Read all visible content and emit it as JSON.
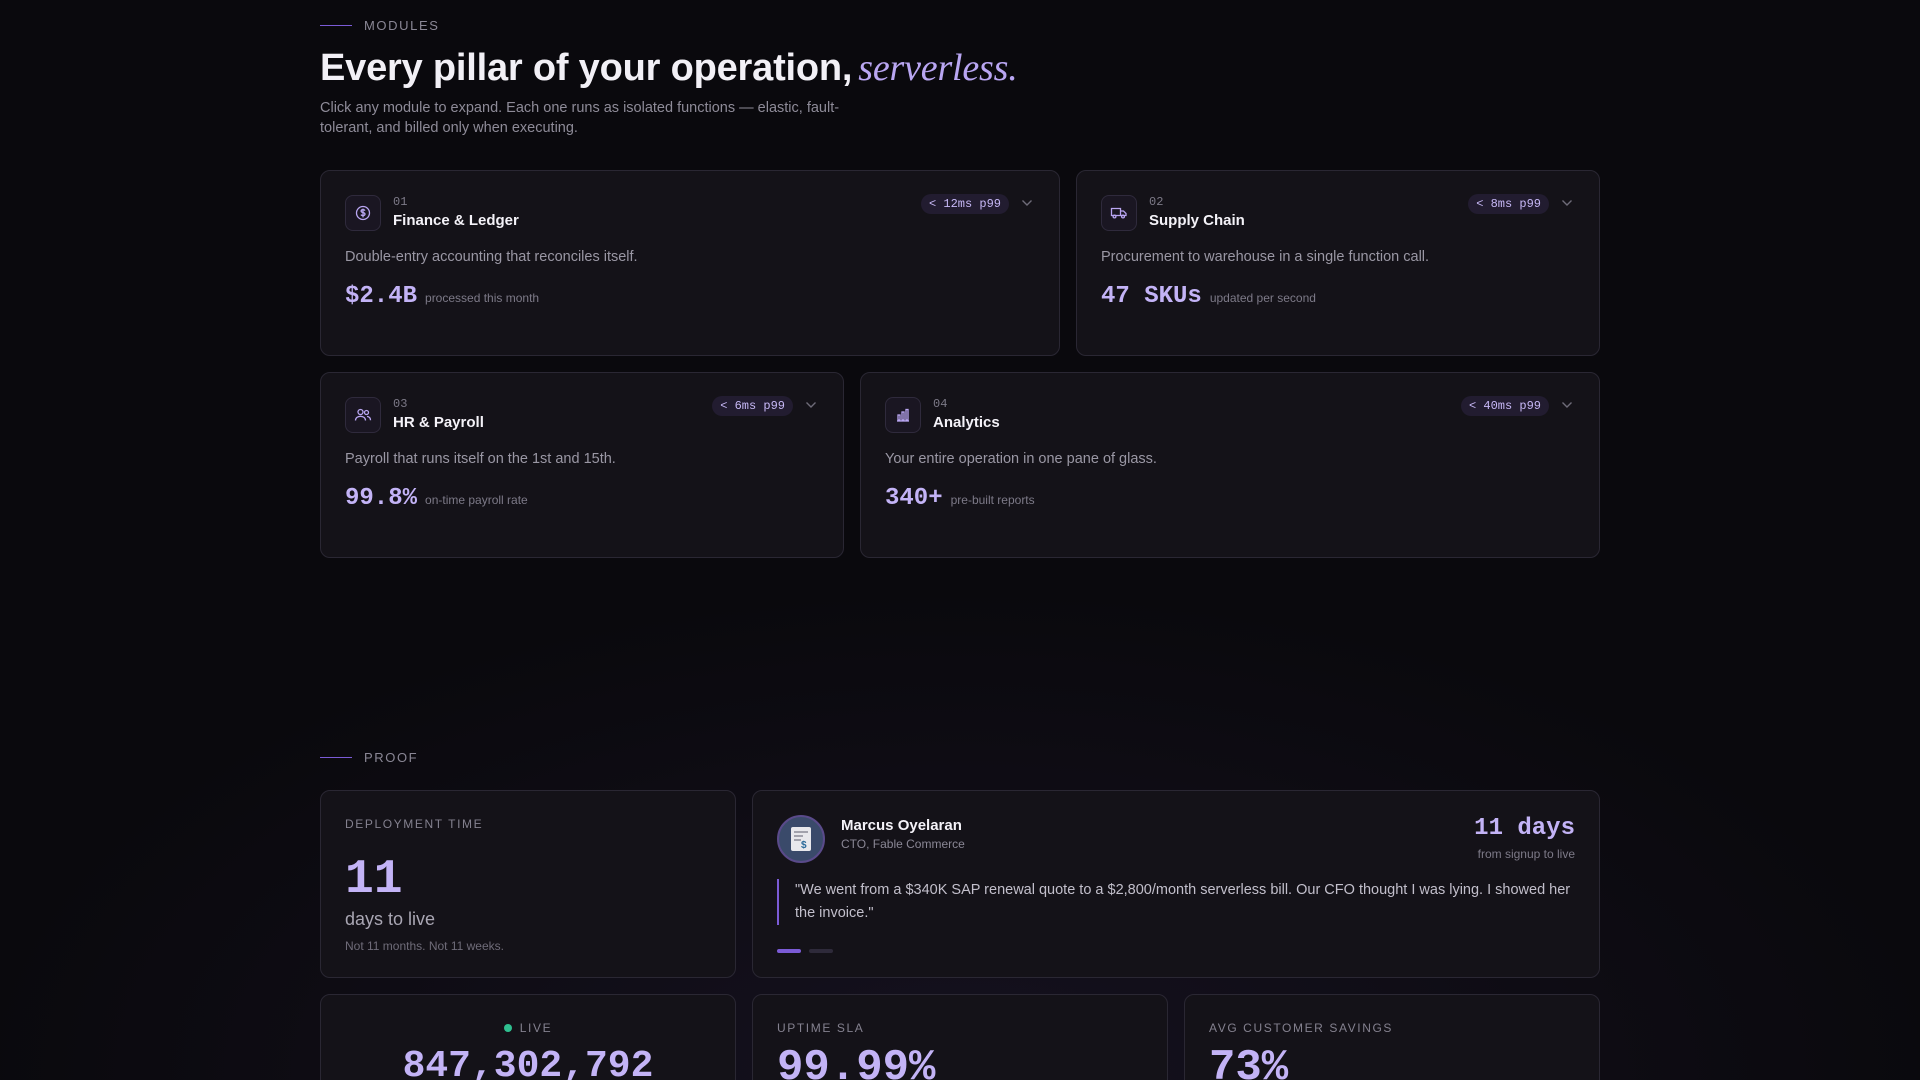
{
  "modules": {
    "eyebrow": "MODULES",
    "title_main": "Every pillar of your operation,",
    "title_accent": "serverless.",
    "subtitle": "Click any module to expand. Each one runs as isolated functions — elastic, fault-tolerant, and billed only when executing.",
    "items": [
      {
        "num": "01",
        "name": "Finance & Ledger",
        "badge": "< 12ms p99",
        "desc": "Double-entry accounting that reconciles itself.",
        "stat": "$2.4B",
        "stat_label": "processed this month",
        "icon": "dollar-icon"
      },
      {
        "num": "02",
        "name": "Supply Chain",
        "badge": "< 8ms p99",
        "desc": "Procurement to warehouse in a single function call.",
        "stat": "47 SKUs",
        "stat_label": "updated per second",
        "icon": "truck-icon"
      },
      {
        "num": "03",
        "name": "HR & Payroll",
        "badge": "< 6ms p99",
        "desc": "Payroll that runs itself on the 1st and 15th.",
        "stat": "99.8%",
        "stat_label": "on-time payroll rate",
        "icon": "users-icon"
      },
      {
        "num": "04",
        "name": "Analytics",
        "badge": "< 40ms p99",
        "desc": "Your entire operation in one pane of glass.",
        "stat": "340+",
        "stat_label": "pre-built reports",
        "icon": "bar-chart-icon"
      }
    ]
  },
  "proof": {
    "eyebrow": "PROOF",
    "deployment": {
      "label": "DEPLOYMENT TIME",
      "value": "11",
      "unit": "days to live",
      "note": "Not 11 months. Not 11 weeks."
    },
    "testimonial": {
      "name": "Marcus Oyelaran",
      "role": "CTO, Fable Commerce",
      "metric": "11 days",
      "metric_label": "from signup to live",
      "quote": "\"We went from a $340K SAP renewal quote to a $2,800/month serverless bill. Our CFO thought I was lying. I showed her the invoice.\"",
      "avatar_icon": "invoice-icon",
      "active_dot": 0,
      "dot_count": 2
    },
    "live": {
      "label": "LIVE",
      "value": "847,302,792",
      "dot_color": "#2fbf8f"
    },
    "uptime": {
      "label": "UPTIME SLA",
      "value": "99.99%"
    },
    "savings": {
      "label": "AVG CUSTOMER SAVINGS",
      "value": "73%"
    }
  },
  "colors": {
    "accent": "#7b5bd6",
    "accent_light": "#c3b3f6",
    "card_bg": "#141218",
    "border": "#2a2733"
  }
}
